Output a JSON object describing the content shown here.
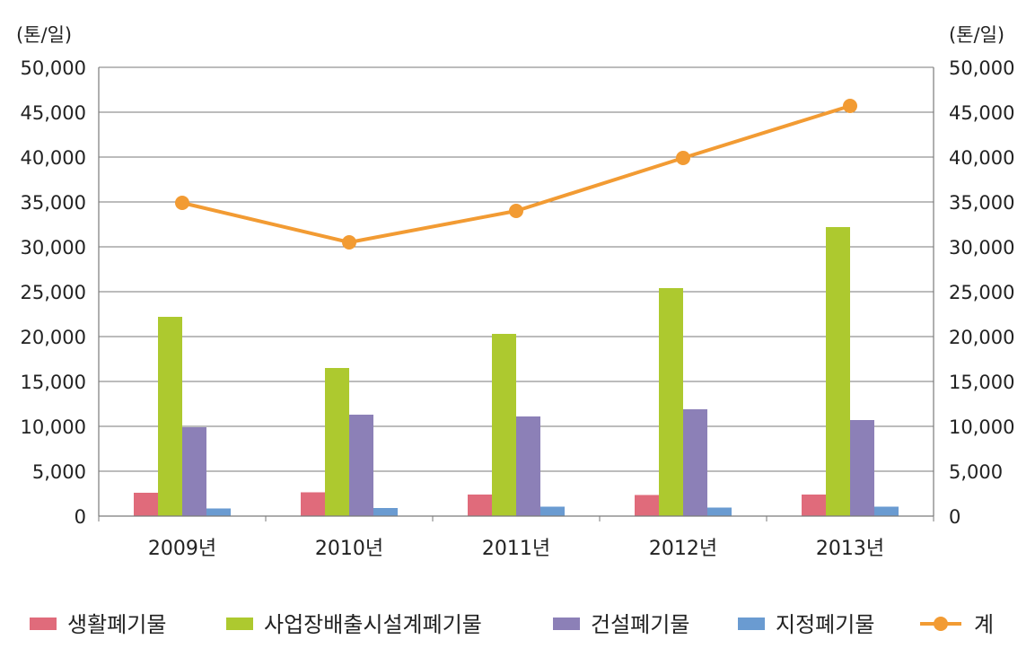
{
  "chart_data": {
    "type": "bar",
    "categories": [
      "2009년",
      "2010년",
      "2011년",
      "2012년",
      "2013년"
    ],
    "series": [
      {
        "name": "생활폐기물",
        "kind": "bar",
        "color": "#e06b7b",
        "values": [
          2600,
          2650,
          2400,
          2350,
          2400
        ]
      },
      {
        "name": "사업장배출시설계폐기물",
        "kind": "bar",
        "color": "#adc92f",
        "values": [
          22200,
          16500,
          20300,
          25400,
          32200
        ]
      },
      {
        "name": "건설폐기물",
        "kind": "bar",
        "color": "#8c80b7",
        "values": [
          9900,
          11300,
          11100,
          11900,
          10700
        ]
      },
      {
        "name": "지정폐기물",
        "kind": "bar",
        "color": "#6a9bd1",
        "values": [
          850,
          900,
          1050,
          950,
          1050
        ]
      },
      {
        "name": "계",
        "kind": "line",
        "color": "#f29b33",
        "values": [
          34900,
          30500,
          34000,
          39900,
          45700
        ]
      }
    ],
    "y_left": {
      "unit_label": "(톤/일)",
      "min": 0,
      "max": 50000,
      "step": 5000,
      "ticks": [
        "0",
        "5,000",
        "10,000",
        "15,000",
        "20,000",
        "25,000",
        "30,000",
        "35,000",
        "40,000",
        "45,000",
        "50,000"
      ]
    },
    "y_right": {
      "unit_label": "(톤/일)",
      "min": 0,
      "max": 50000,
      "step": 5000,
      "ticks": [
        "0",
        "5,000",
        "10,000",
        "15,000",
        "20,000",
        "25,000",
        "30,000",
        "35,000",
        "40,000",
        "45,000",
        "50,000"
      ]
    },
    "grid": true,
    "legend_position": "bottom"
  }
}
